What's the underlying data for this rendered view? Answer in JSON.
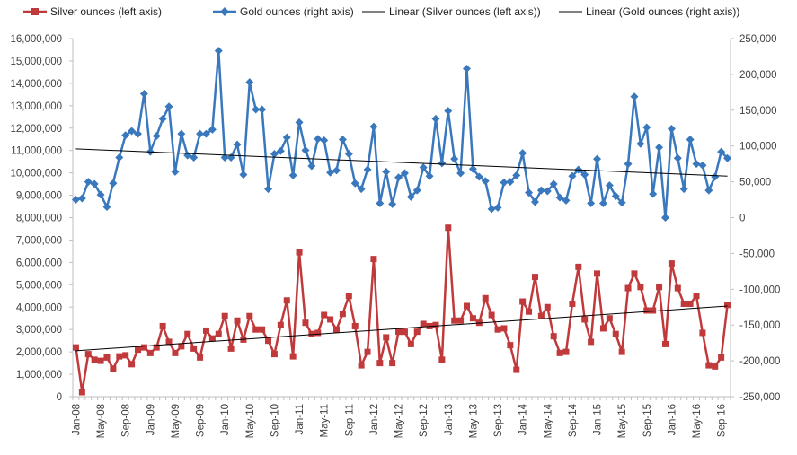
{
  "chart_data": {
    "type": "line",
    "legend": {
      "position": "top",
      "entries": [
        "Silver ounces (left axis)",
        "Gold ounces (right axis)",
        "Linear (Silver ounces (left axis))",
        "Linear (Gold ounces (right axis))"
      ]
    },
    "colors": {
      "silver": "#C0393B",
      "gold": "#3A78BE",
      "trend": "#000000",
      "axis": "#BFBFBF",
      "text": "#404040"
    },
    "x_tick_labels": [
      "Jan-08",
      "May-08",
      "Sep-08",
      "Jan-09",
      "May-09",
      "Sep-09",
      "Jan-10",
      "May-10",
      "Sep-10",
      "Jan-11",
      "May-11",
      "Sep-11",
      "Jan-12",
      "May-12",
      "Sep-12",
      "Jan-13",
      "May-13",
      "Sep-13",
      "Jan-14",
      "May-14",
      "Sep-14",
      "Jan-15",
      "May-15",
      "Sep-15",
      "Jan-16",
      "May-16",
      "Sep-16"
    ],
    "x_start": "Jan-08",
    "x_end": "Nov-16",
    "left_axis": {
      "min": 0,
      "max": 16000000,
      "step": 1000000,
      "tick_labels": [
        "0",
        "1,000,000",
        "2,000,000",
        "3,000,000",
        "4,000,000",
        "5,000,000",
        "6,000,000",
        "7,000,000",
        "8,000,000",
        "9,000,000",
        "10,000,000",
        "11,000,000",
        "12,000,000",
        "13,000,000",
        "14,000,000",
        "15,000,000",
        "16,000,000"
      ]
    },
    "right_axis": {
      "min": -250000,
      "max": 250000,
      "step": 50000,
      "tick_labels": [
        "-250,000",
        "-200,000",
        "-150,000",
        "-100,000",
        "-50,000",
        "0",
        "50,000",
        "100,000",
        "150,000",
        "200,000",
        "250,000"
      ]
    },
    "series": [
      {
        "name": "Silver ounces (left axis)",
        "axis": "left",
        "marker": "square",
        "values": [
          2200000,
          200000,
          1900000,
          1650000,
          1600000,
          1750000,
          1250000,
          1800000,
          1850000,
          1450000,
          2100000,
          2200000,
          1950000,
          2200000,
          3150000,
          2450000,
          1950000,
          2250000,
          2800000,
          2150000,
          1750000,
          2950000,
          2600000,
          2800000,
          3600000,
          2150000,
          3400000,
          2550000,
          3600000,
          3000000,
          3000000,
          2500000,
          1900000,
          3200000,
          4300000,
          1800000,
          6450000,
          3300000,
          2800000,
          2850000,
          3650000,
          3450000,
          3000000,
          3700000,
          4500000,
          3150000,
          1400000,
          2000000,
          6150000,
          1500000,
          2650000,
          1500000,
          2900000,
          2900000,
          2350000,
          2900000,
          3250000,
          3150000,
          3200000,
          1650000,
          7550000,
          3400000,
          3400000,
          4050000,
          3500000,
          3300000,
          4400000,
          3650000,
          3000000,
          3050000,
          2300000,
          1200000,
          4250000,
          3800000,
          5350000,
          3600000,
          4000000,
          2700000,
          1950000,
          2000000,
          4150000,
          5800000,
          3450000,
          2450000,
          5500000,
          3050000,
          3500000,
          2800000,
          2000000,
          4850000,
          5500000,
          4900000,
          3850000,
          3850000,
          4900000,
          2350000,
          5950000,
          4850000,
          4150000,
          4150000,
          4500000,
          2850000,
          1400000,
          1350000,
          1750000,
          4100000
        ],
        "trend": {
          "start": 2050000,
          "end": 4050000
        }
      },
      {
        "name": "Gold ounces (right axis)",
        "axis": "right",
        "marker": "diamond",
        "values": [
          25000,
          27000,
          50000,
          47000,
          32000,
          15000,
          48000,
          84000,
          115000,
          121000,
          117000,
          173000,
          92000,
          114000,
          138000,
          155000,
          64000,
          117000,
          87000,
          84000,
          117000,
          117000,
          123000,
          233000,
          84000,
          84000,
          102000,
          60000,
          189000,
          151000,
          151000,
          40000,
          89000,
          93000,
          112000,
          59000,
          133000,
          94000,
          72000,
          110000,
          108000,
          63000,
          66000,
          109000,
          89000,
          48000,
          40000,
          67000,
          127000,
          20000,
          64000,
          19000,
          56000,
          62000,
          29000,
          38000,
          70000,
          58000,
          138000,
          76000,
          149000,
          82000,
          62000,
          208000,
          68000,
          57000,
          51000,
          12000,
          14000,
          49000,
          50000,
          59000,
          90000,
          35000,
          22000,
          38000,
          37000,
          47000,
          28000,
          24000,
          58000,
          67000,
          60000,
          20000,
          82000,
          20000,
          45000,
          30000,
          21000,
          75000,
          169000,
          103000,
          126000,
          33000,
          98000,
          0,
          124000,
          83000,
          40000,
          109000,
          75000,
          73000,
          38000,
          57000,
          92000,
          83000
        ],
        "trend": {
          "start": 96000,
          "end": 58000
        }
      }
    ]
  }
}
